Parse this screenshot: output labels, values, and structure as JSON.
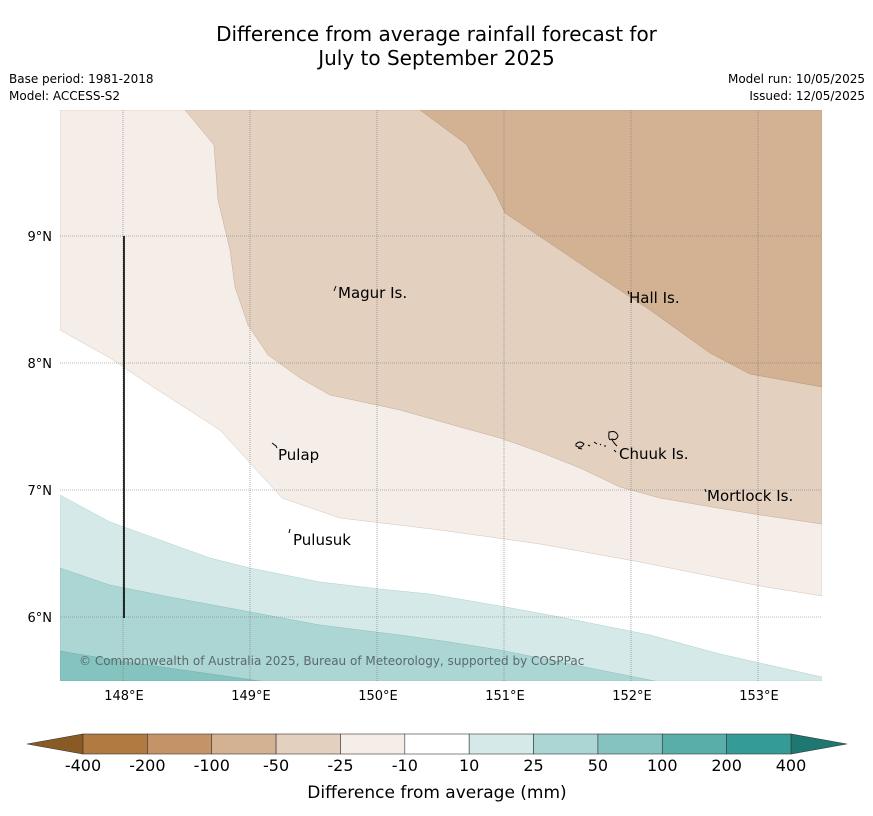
{
  "title": {
    "line1": "Difference from average rainfall forecast for",
    "line2": "July to September 2025"
  },
  "meta_left": {
    "base_period": "Base period: 1981-2018",
    "model": "Model: ACCESS-S2"
  },
  "meta_right": {
    "model_run": "Model run: 10/05/2025",
    "issued": "Issued: 12/05/2025"
  },
  "map": {
    "lat_labels": [
      "9°N",
      "8°N",
      "7°N",
      "6°N"
    ],
    "lon_labels": [
      "148°E",
      "149°E",
      "150°E",
      "151°E",
      "152°E",
      "153°E"
    ],
    "places": {
      "magur": "Magur Is.",
      "hall": "Hall Is.",
      "pulap": "Pulap",
      "chuuk": "Chuuk Is.",
      "mortlock": "Mortlock Is.",
      "pulusuk": "Pulusuk"
    },
    "copyright": "© Commonwealth of Australia 2025, Bureau of Meteorology, supported by COSPPac"
  },
  "colorbar": {
    "labels": [
      "-400",
      "-200",
      "-100",
      "-50",
      "-25",
      "-10",
      "10",
      "25",
      "50",
      "100",
      "200",
      "400"
    ],
    "colors": [
      "#8a5a24",
      "#b07a40",
      "#c49468",
      "#d2b292",
      "#e3d0bf",
      "#f5ede7",
      "#ffffff",
      "#d5eae8",
      "#acd6d4",
      "#84c3c0",
      "#5aaeaa",
      "#359b97",
      "#1f7772"
    ],
    "title": "Difference from average (mm)"
  }
}
